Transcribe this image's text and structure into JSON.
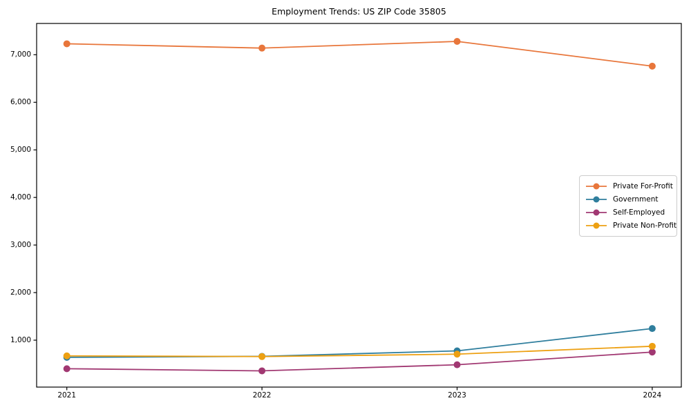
{
  "title": "Employment Trends: US ZIP Code 35805",
  "chart_data": {
    "type": "line",
    "title": "Employment Trends: US ZIP Code 35805",
    "categories": [
      "2021",
      "2022",
      "2023",
      "2024"
    ],
    "series": [
      {
        "name": "Private For-Profit",
        "color": "#E8763B",
        "values": [
          7230,
          7140,
          7280,
          6760
        ]
      },
      {
        "name": "Government",
        "color": "#2F7E9D",
        "values": [
          640,
          660,
          775,
          1245
        ]
      },
      {
        "name": "Self-Employed",
        "color": "#A13872",
        "values": [
          400,
          355,
          483,
          750
        ]
      },
      {
        "name": "Private Non-Profit",
        "color": "#EDA012",
        "values": [
          670,
          655,
          706,
          872
        ]
      }
    ],
    "xlabel": "",
    "ylabel": "",
    "ylim": [
      0,
      7660
    ],
    "y_ticks": [
      1000,
      2000,
      3000,
      4000,
      5000,
      6000,
      7000
    ],
    "y_tick_labels": [
      "1,000",
      "2,000",
      "3,000",
      "4,000",
      "5,000",
      "6,000",
      "7,000"
    ],
    "grid": false,
    "legend_position": "center-right",
    "marker": "circle",
    "axis_color": "#000000"
  }
}
